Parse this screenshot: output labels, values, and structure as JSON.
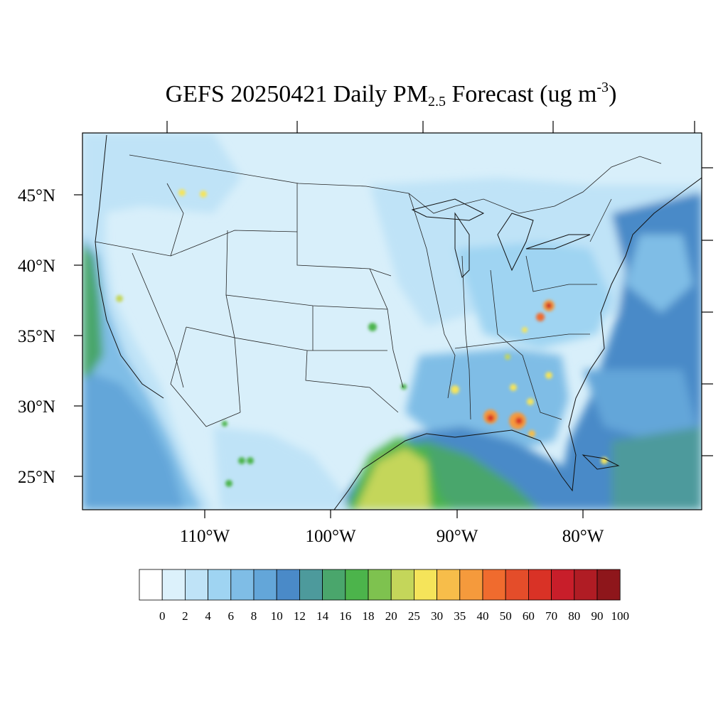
{
  "title": {
    "prefix": "GEFS 20250421 Daily PM",
    "sub": "2.5",
    "mid": " Forecast (ug m",
    "sup": "-3",
    "suffix": ")"
  },
  "map": {
    "lon_range": [
      -119,
      -70
    ],
    "lat_range": [
      22.7,
      49.6
    ],
    "lat_labels": [
      "25°N",
      "30°N",
      "35°N",
      "40°N",
      "45°N"
    ],
    "lon_labels": [
      "110°W",
      "100°W",
      "90°W",
      "80°W"
    ],
    "plot_bg": "#d8effa",
    "grid": false
  },
  "colorbar": {
    "labels": [
      "0",
      "2",
      "4",
      "6",
      "8",
      "10",
      "12",
      "14",
      "16",
      "18",
      "20",
      "25",
      "30",
      "35",
      "40",
      "50",
      "60",
      "70",
      "80",
      "90",
      "100"
    ],
    "colors": [
      "#ffffff",
      "#dcf1fb",
      "#bfe3f7",
      "#9fd4f2",
      "#7fbde6",
      "#63a6d9",
      "#4a8ac8",
      "#4d9a9c",
      "#4aa66c",
      "#4cb44b",
      "#7ec24f",
      "#c4d65a",
      "#f5e45a",
      "#f7bd4a",
      "#f59a3c",
      "#f06b2e",
      "#e44d2a",
      "#d93226",
      "#c81e2a",
      "#b01c24",
      "#8e161b"
    ]
  }
}
